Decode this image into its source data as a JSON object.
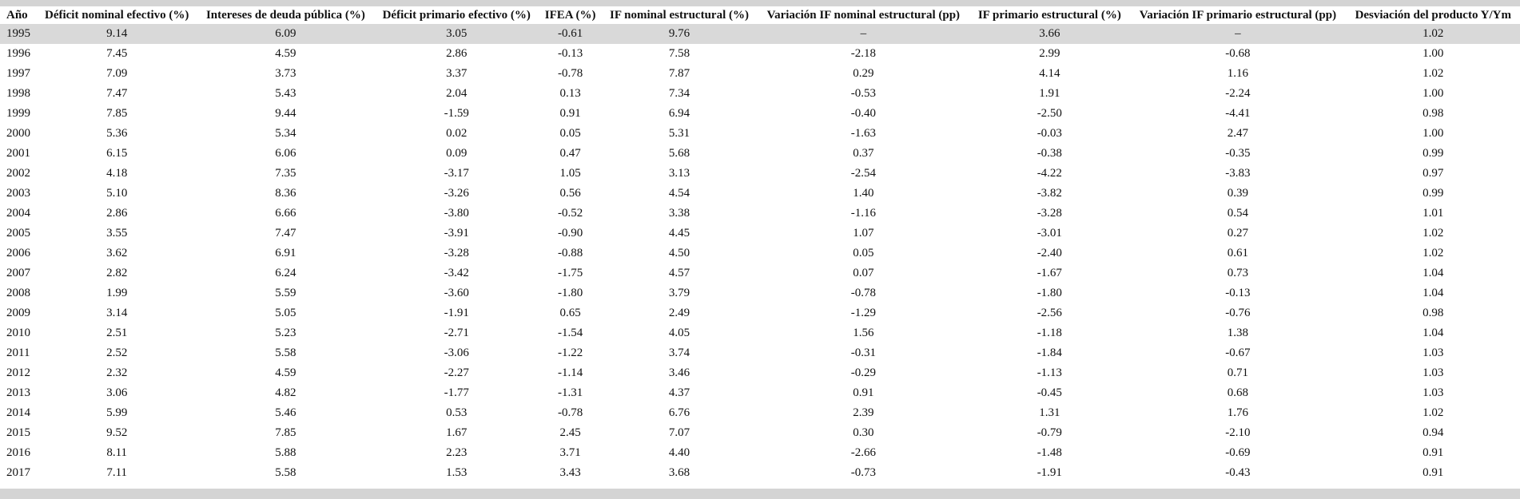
{
  "page": {
    "background_color": "#d4d4d4",
    "table_background_color": "#ffffff",
    "highlight_row_color": "#d9d9d9",
    "text_color": "#111111",
    "highlighted_year": "1995"
  },
  "table": {
    "columns": [
      {
        "key": "ano",
        "label": "Año"
      },
      {
        "key": "deficit_nominal_efectivo",
        "label": "Déficit nominal efectivo (%)"
      },
      {
        "key": "intereses_deuda_publica",
        "label": "Intereses de deuda pública (%)"
      },
      {
        "key": "deficit_primario_efectivo",
        "label": "Déficit primario efectivo (%)"
      },
      {
        "key": "ifea",
        "label": "IFEA (%)"
      },
      {
        "key": "if_nominal_estructural",
        "label": "IF nominal estructural (%)"
      },
      {
        "key": "variacion_if_nominal_estructural",
        "label": "Variación IF nominal estructural (pp)"
      },
      {
        "key": "if_primario_estructural",
        "label": "IF primario estructural (%)"
      },
      {
        "key": "variacion_if_primario_estructural",
        "label": "Variación IF primario estructural (pp)"
      },
      {
        "key": "desviacion_producto",
        "label": "Desviación del producto Y/Ym"
      }
    ],
    "rows": [
      [
        "1995",
        "9.14",
        "6.09",
        "3.05",
        "-0.61",
        "9.76",
        "–",
        "3.66",
        "–",
        "1.02"
      ],
      [
        "1996",
        "7.45",
        "4.59",
        "2.86",
        "-0.13",
        "7.58",
        "-2.18",
        "2.99",
        "-0.68",
        "1.00"
      ],
      [
        "1997",
        "7.09",
        "3.73",
        "3.37",
        "-0.78",
        "7.87",
        "0.29",
        "4.14",
        "1.16",
        "1.02"
      ],
      [
        "1998",
        "7.47",
        "5.43",
        "2.04",
        "0.13",
        "7.34",
        "-0.53",
        "1.91",
        "-2.24",
        "1.00"
      ],
      [
        "1999",
        "7.85",
        "9.44",
        "-1.59",
        "0.91",
        "6.94",
        "-0.40",
        "-2.50",
        "-4.41",
        "0.98"
      ],
      [
        "2000",
        "5.36",
        "5.34",
        "0.02",
        "0.05",
        "5.31",
        "-1.63",
        "-0.03",
        "2.47",
        "1.00"
      ],
      [
        "2001",
        "6.15",
        "6.06",
        "0.09",
        "0.47",
        "5.68",
        "0.37",
        "-0.38",
        "-0.35",
        "0.99"
      ],
      [
        "2002",
        "4.18",
        "7.35",
        "-3.17",
        "1.05",
        "3.13",
        "-2.54",
        "-4.22",
        "-3.83",
        "0.97"
      ],
      [
        "2003",
        "5.10",
        "8.36",
        "-3.26",
        "0.56",
        "4.54",
        "1.40",
        "-3.82",
        "0.39",
        "0.99"
      ],
      [
        "2004",
        "2.86",
        "6.66",
        "-3.80",
        "-0.52",
        "3.38",
        "-1.16",
        "-3.28",
        "0.54",
        "1.01"
      ],
      [
        "2005",
        "3.55",
        "7.47",
        "-3.91",
        "-0.90",
        "4.45",
        "1.07",
        "-3.01",
        "0.27",
        "1.02"
      ],
      [
        "2006",
        "3.62",
        "6.91",
        "-3.28",
        "-0.88",
        "4.50",
        "0.05",
        "-2.40",
        "0.61",
        "1.02"
      ],
      [
        "2007",
        "2.82",
        "6.24",
        "-3.42",
        "-1.75",
        "4.57",
        "0.07",
        "-1.67",
        "0.73",
        "1.04"
      ],
      [
        "2008",
        "1.99",
        "5.59",
        "-3.60",
        "-1.80",
        "3.79",
        "-0.78",
        "-1.80",
        "-0.13",
        "1.04"
      ],
      [
        "2009",
        "3.14",
        "5.05",
        "-1.91",
        "0.65",
        "2.49",
        "-1.29",
        "-2.56",
        "-0.76",
        "0.98"
      ],
      [
        "2010",
        "2.51",
        "5.23",
        "-2.71",
        "-1.54",
        "4.05",
        "1.56",
        "-1.18",
        "1.38",
        "1.04"
      ],
      [
        "2011",
        "2.52",
        "5.58",
        "-3.06",
        "-1.22",
        "3.74",
        "-0.31",
        "-1.84",
        "-0.67",
        "1.03"
      ],
      [
        "2012",
        "2.32",
        "4.59",
        "-2.27",
        "-1.14",
        "3.46",
        "-0.29",
        "-1.13",
        "0.71",
        "1.03"
      ],
      [
        "2013",
        "3.06",
        "4.82",
        "-1.77",
        "-1.31",
        "4.37",
        "0.91",
        "-0.45",
        "0.68",
        "1.03"
      ],
      [
        "2014",
        "5.99",
        "5.46",
        "0.53",
        "-0.78",
        "6.76",
        "2.39",
        "1.31",
        "1.76",
        "1.02"
      ],
      [
        "2015",
        "9.52",
        "7.85",
        "1.67",
        "2.45",
        "7.07",
        "0.30",
        "-0.79",
        "-2.10",
        "0.94"
      ],
      [
        "2016",
        "8.11",
        "5.88",
        "2.23",
        "3.71",
        "4.40",
        "-2.66",
        "-1.48",
        "-0.69",
        "0.91"
      ],
      [
        "2017",
        "7.11",
        "5.58",
        "1.53",
        "3.43",
        "3.68",
        "-0.73",
        "-1.91",
        "-0.43",
        "0.91"
      ]
    ]
  }
}
